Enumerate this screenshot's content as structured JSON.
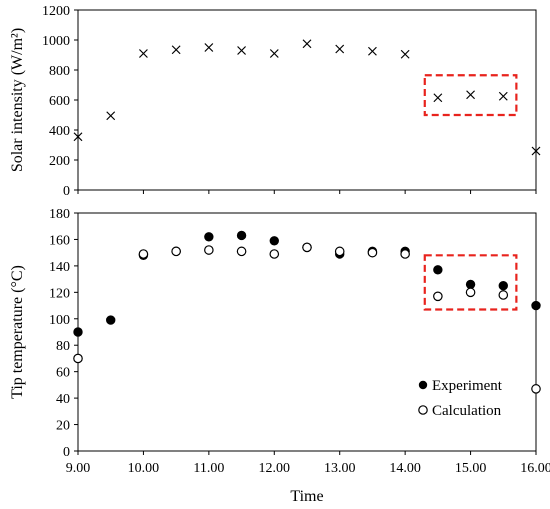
{
  "chart_data": [
    {
      "type": "scatter",
      "ylabel": "Solar intensity (W/m²)",
      "xlabel": "",
      "xlim": [
        9,
        16
      ],
      "ylim": [
        0,
        1200
      ],
      "yticks": [
        0,
        200,
        400,
        600,
        800,
        1000,
        1200
      ],
      "xticks": [],
      "grid": false,
      "marker": "cross",
      "highlight_box_x": [
        14.3,
        15.7
      ],
      "highlight_box_y": [
        500,
        765
      ],
      "highlight_color": "#e8231d",
      "series": [
        {
          "x": [
            9.0,
            9.5,
            10.0,
            10.5,
            11.0,
            11.5,
            12.0,
            12.5,
            13.0,
            13.5,
            14.0,
            14.5,
            15.0,
            15.5,
            16.0
          ],
          "y": [
            355,
            495,
            910,
            935,
            950,
            930,
            910,
            975,
            940,
            925,
            905,
            615,
            635,
            625,
            260
          ]
        }
      ]
    },
    {
      "type": "scatter",
      "ylabel": "Tip temperature (°C)",
      "xlabel": "Time",
      "xlim": [
        9,
        16
      ],
      "ylim": [
        0,
        180
      ],
      "yticks": [
        0,
        20,
        40,
        60,
        80,
        100,
        120,
        140,
        160,
        180
      ],
      "xticks": [
        "9.00",
        "10.00",
        "11.00",
        "12.00",
        "13.00",
        "14.00",
        "15.00",
        "16.00"
      ],
      "grid": false,
      "legend": "bottom-right",
      "highlight_box_x": [
        14.3,
        15.7
      ],
      "highlight_box_y": [
        107,
        148
      ],
      "highlight_color": "#e8231d",
      "series": [
        {
          "name": "Experiment",
          "marker": "filled-circle",
          "x": [
            9.0,
            9.5,
            10.0,
            10.5,
            11.0,
            11.5,
            12.0,
            12.5,
            13.0,
            13.5,
            14.0,
            14.5,
            15.0,
            15.5,
            16.0
          ],
          "y": [
            90,
            99,
            148,
            151,
            162,
            163,
            159,
            154,
            149,
            151,
            151,
            137,
            126,
            125,
            110
          ]
        },
        {
          "name": "Calculation",
          "marker": "open-circle",
          "x": [
            9.0,
            10.0,
            10.5,
            11.0,
            11.5,
            12.0,
            12.5,
            13.0,
            13.5,
            14.0,
            14.5,
            15.0,
            15.5,
            16.0
          ],
          "y": [
            70,
            149,
            151,
            152,
            151,
            149,
            154,
            151,
            150,
            149,
            117,
            120,
            118,
            47
          ]
        }
      ]
    }
  ]
}
